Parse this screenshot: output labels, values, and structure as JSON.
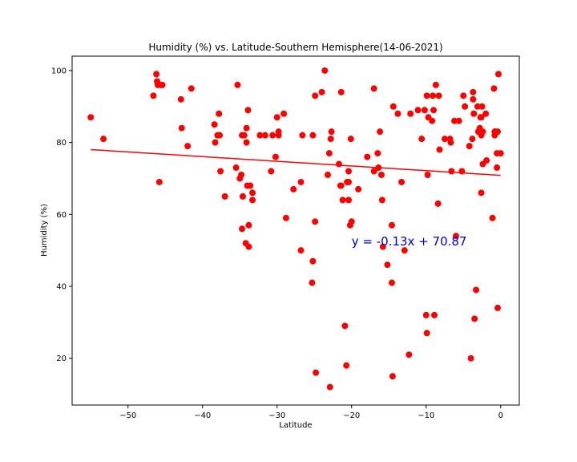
{
  "chart_data": {
    "type": "scatter",
    "title": "Humidity (%) vs. Latitude-Southern Hemisphere(14-06-2021)",
    "xlabel": "Latitude",
    "ylabel": "Humidity (%)",
    "xlim": [
      -57.5,
      2.5
    ],
    "ylim": [
      7,
      104
    ],
    "xticks": [
      -50,
      -40,
      -30,
      -20,
      -10,
      0
    ],
    "xtick_labels": [
      "−50",
      "−40",
      "−30",
      "−20",
      "−10",
      "0"
    ],
    "yticks": [
      20,
      40,
      60,
      80,
      100
    ],
    "yticks_labels": [
      "20",
      "40",
      "60",
      "80",
      "100"
    ],
    "grid": false,
    "point_color": "#ff0000",
    "line_color": "#ff0000",
    "points": [
      [
        -55,
        87
      ],
      [
        -53.3,
        81
      ],
      [
        -46.6,
        93
      ],
      [
        -46.2,
        99
      ],
      [
        -46.1,
        97
      ],
      [
        -46,
        96
      ],
      [
        -45.8,
        69
      ],
      [
        -45.6,
        96
      ],
      [
        -45.4,
        96
      ],
      [
        -42.9,
        92
      ],
      [
        -42.8,
        84
      ],
      [
        -42,
        79
      ],
      [
        -41.5,
        95
      ],
      [
        -38.4,
        85
      ],
      [
        -38.3,
        80
      ],
      [
        -38,
        82
      ],
      [
        -37.8,
        88
      ],
      [
        -37.7,
        82
      ],
      [
        -37.6,
        72
      ],
      [
        -37,
        65
      ],
      [
        -35.5,
        73
      ],
      [
        -35.3,
        96
      ],
      [
        -35,
        70
      ],
      [
        -34.8,
        71
      ],
      [
        -34.7,
        82
      ],
      [
        -34.7,
        56
      ],
      [
        -34.6,
        65
      ],
      [
        -34.4,
        82
      ],
      [
        -34.2,
        52
      ],
      [
        -34.1,
        84
      ],
      [
        -34.1,
        80
      ],
      [
        -34,
        68
      ],
      [
        -33.9,
        89
      ],
      [
        -33.8,
        51
      ],
      [
        -33.8,
        57
      ],
      [
        -33.6,
        68
      ],
      [
        -33.3,
        66
      ],
      [
        -33.3,
        64
      ],
      [
        -32.3,
        82
      ],
      [
        -31.6,
        82
      ],
      [
        -30.8,
        72
      ],
      [
        -30.6,
        82
      ],
      [
        -30.2,
        76
      ],
      [
        -30,
        87
      ],
      [
        -29.8,
        82
      ],
      [
        -29.8,
        83
      ],
      [
        -29.1,
        88
      ],
      [
        -28.8,
        59
      ],
      [
        -27.8,
        67
      ],
      [
        -26.8,
        50
      ],
      [
        -26.8,
        69
      ],
      [
        -26.6,
        82
      ],
      [
        -25.3,
        41
      ],
      [
        -25.2,
        82
      ],
      [
        -25.2,
        47
      ],
      [
        -24.9,
        58
      ],
      [
        -24.9,
        93
      ],
      [
        -24.8,
        16
      ],
      [
        -24,
        94
      ],
      [
        -23.6,
        100
      ],
      [
        -23.2,
        71
      ],
      [
        -23,
        77
      ],
      [
        -22.9,
        12
      ],
      [
        -22.8,
        81
      ],
      [
        -22.7,
        83
      ],
      [
        -21.7,
        74
      ],
      [
        -21.5,
        68
      ],
      [
        -21.4,
        68
      ],
      [
        -21.4,
        94
      ],
      [
        -21.2,
        64
      ],
      [
        -20.9,
        29
      ],
      [
        -20.7,
        18
      ],
      [
        -20.6,
        69
      ],
      [
        -20.4,
        72
      ],
      [
        -20.4,
        64
      ],
      [
        -20.4,
        69
      ],
      [
        -20.2,
        57
      ],
      [
        -20.1,
        81
      ],
      [
        -20,
        58
      ],
      [
        -19.1,
        67
      ],
      [
        -17.9,
        76
      ],
      [
        -17,
        95
      ],
      [
        -17,
        72
      ],
      [
        -16.5,
        77
      ],
      [
        -16.4,
        73
      ],
      [
        -16.2,
        83
      ],
      [
        -16,
        71
      ],
      [
        -15.9,
        64
      ],
      [
        -15.8,
        51
      ],
      [
        -15.2,
        46
      ],
      [
        -14.6,
        57
      ],
      [
        -14.6,
        41
      ],
      [
        -14.5,
        15
      ],
      [
        -14.4,
        90
      ],
      [
        -13.8,
        88
      ],
      [
        -13.3,
        69
      ],
      [
        -12.9,
        50
      ],
      [
        -12.3,
        21
      ],
      [
        -12.1,
        88
      ],
      [
        -11.1,
        89
      ],
      [
        -10.6,
        81
      ],
      [
        -10.2,
        89
      ],
      [
        -10,
        32
      ],
      [
        -9.9,
        93
      ],
      [
        -9.9,
        27
      ],
      [
        -9.8,
        71
      ],
      [
        -9.7,
        87
      ],
      [
        -9.2,
        86
      ],
      [
        -9.1,
        93
      ],
      [
        -9,
        89
      ],
      [
        -8.9,
        32
      ],
      [
        -8.7,
        96
      ],
      [
        -8.4,
        63
      ],
      [
        -8.3,
        93
      ],
      [
        -8.2,
        78
      ],
      [
        -7.5,
        81
      ],
      [
        -6.8,
        81
      ],
      [
        -6.7,
        80
      ],
      [
        -6.6,
        72
      ],
      [
        -6.2,
        86
      ],
      [
        -6,
        54
      ],
      [
        -5.6,
        86
      ],
      [
        -5.2,
        72
      ],
      [
        -5,
        93
      ],
      [
        -4.8,
        90
      ],
      [
        -4.2,
        79
      ],
      [
        -4,
        20
      ],
      [
        -3.8,
        81
      ],
      [
        -3.7,
        94
      ],
      [
        -3.7,
        92
      ],
      [
        -3.6,
        88
      ],
      [
        -3.5,
        31
      ],
      [
        -3.3,
        39
      ],
      [
        -3.1,
        90
      ],
      [
        -3,
        83
      ],
      [
        -2.9,
        83
      ],
      [
        -2.8,
        84
      ],
      [
        -2.7,
        87
      ],
      [
        -2.6,
        87
      ],
      [
        -2.6,
        82
      ],
      [
        -2.6,
        66
      ],
      [
        -2.5,
        90
      ],
      [
        -2.4,
        83
      ],
      [
        -2.4,
        74
      ],
      [
        -2,
        88
      ],
      [
        -1.9,
        75
      ],
      [
        -1.1,
        59
      ],
      [
        -0.9,
        95
      ],
      [
        -0.8,
        83
      ],
      [
        -0.8,
        82
      ],
      [
        -0.7,
        83
      ],
      [
        -0.5,
        77
      ],
      [
        -0.5,
        73
      ],
      [
        -0.4,
        83
      ],
      [
        -0.4,
        34
      ],
      [
        -0.3,
        99
      ],
      [
        0,
        77
      ]
    ],
    "regression": {
      "slope": -0.13,
      "intercept": 70.87,
      "x_range": [
        -55,
        0
      ]
    },
    "annotation": {
      "text": "y = -0.13x + 70.87",
      "x": -20,
      "y": 52.5,
      "color": "#0000cc"
    }
  }
}
